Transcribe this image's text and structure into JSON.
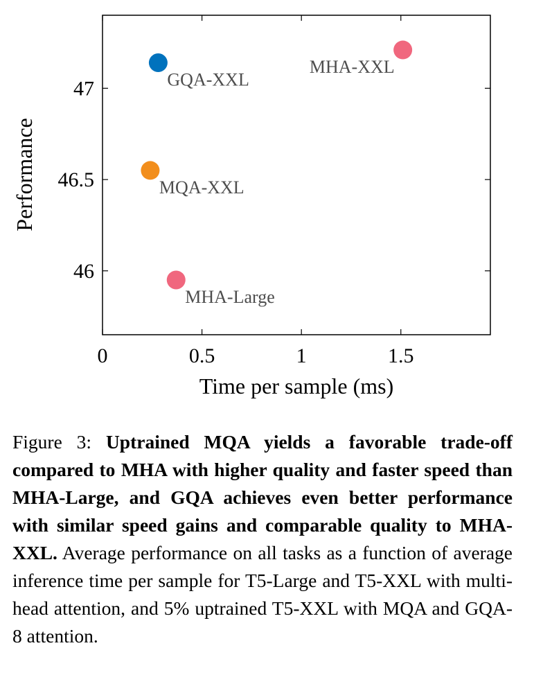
{
  "chart_data": {
    "type": "scatter",
    "xlabel": "Time per sample (ms)",
    "ylabel": "Performance",
    "xlim": [
      0,
      1.95
    ],
    "ylim": [
      45.65,
      47.4
    ],
    "xticks": [
      0,
      0.5,
      1,
      1.5
    ],
    "xtick_labels": [
      "0",
      "0.5",
      "1",
      "1.5"
    ],
    "yticks": [
      46,
      46.5,
      47
    ],
    "ytick_labels": [
      "46",
      "46.5",
      "47"
    ],
    "grid": false,
    "points": [
      {
        "name": "MHA-Large",
        "x": 0.37,
        "y": 45.95,
        "color": "#f0677e",
        "label_side": "right"
      },
      {
        "name": "MHA-XXL",
        "x": 1.51,
        "y": 47.21,
        "color": "#f0677e",
        "label_side": "left"
      },
      {
        "name": "MQA-XXL",
        "x": 0.24,
        "y": 46.55,
        "color": "#f28e1c",
        "label_side": "right"
      },
      {
        "name": "GQA-XXL",
        "x": 0.28,
        "y": 47.14,
        "color": "#0072bd",
        "label_side": "right"
      }
    ]
  },
  "caption": {
    "prefix": "Figure 3: ",
    "bold": "Uptrained MQA yields a favorable trade-off compared to MHA with higher quality and faster speed than MHA-Large, and GQA achieves even better performance with similar speed gains and comparable quality to MHA-XXL.",
    "rest": " Average performance on all tasks as a function of average inference time per sample for T5-Large and T5-XXL with multi-head attention, and 5% uptrained T5-XXL with MQA and GQA-8 attention."
  }
}
